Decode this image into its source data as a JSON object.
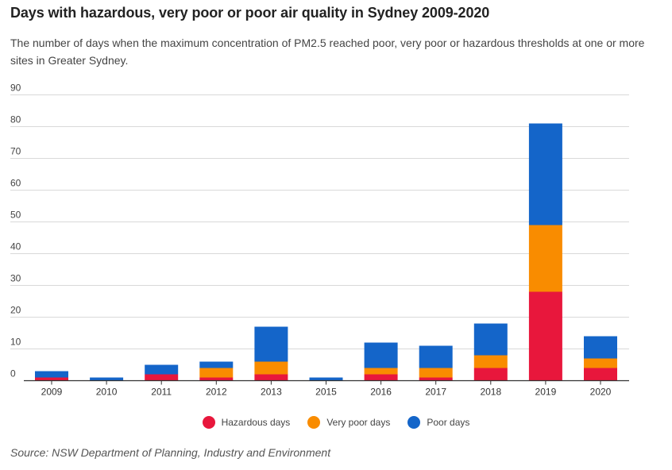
{
  "header": {
    "title": "Days with hazardous, very poor or poor air quality in Sydney 2009-2020",
    "subtitle": "The number of days when the maximum concentration of PM2.5 reached poor, very poor or hazardous thresholds at one or more sites in Greater Sydney."
  },
  "source": "Source: NSW Department of Planning, Industry and Environment",
  "chart_data": {
    "type": "bar",
    "stacked": true,
    "title": "Days with hazardous, very poor or poor air quality in Sydney 2009-2020",
    "xlabel": "",
    "ylabel": "",
    "ylim": [
      0,
      90
    ],
    "yticks": [
      0,
      10,
      20,
      30,
      40,
      50,
      60,
      70,
      80,
      90
    ],
    "grid": true,
    "legend_position": "bottom-center",
    "categories": [
      "2009",
      "2010",
      "2011",
      "2012",
      "2013",
      "2015",
      "2016",
      "2017",
      "2018",
      "2019",
      "2020"
    ],
    "series": [
      {
        "name": "Hazardous days",
        "color": "#e8173c",
        "values": [
          1,
          0,
          2,
          1,
          2,
          0,
          2,
          1,
          4,
          28,
          4
        ]
      },
      {
        "name": "Very poor days",
        "color": "#f98c00",
        "values": [
          0,
          0,
          0,
          3,
          4,
          0,
          2,
          3,
          4,
          21,
          3
        ]
      },
      {
        "name": "Poor days",
        "color": "#1465c9",
        "values": [
          2,
          1,
          3,
          2,
          11,
          1,
          8,
          7,
          10,
          32,
          7
        ]
      }
    ]
  }
}
